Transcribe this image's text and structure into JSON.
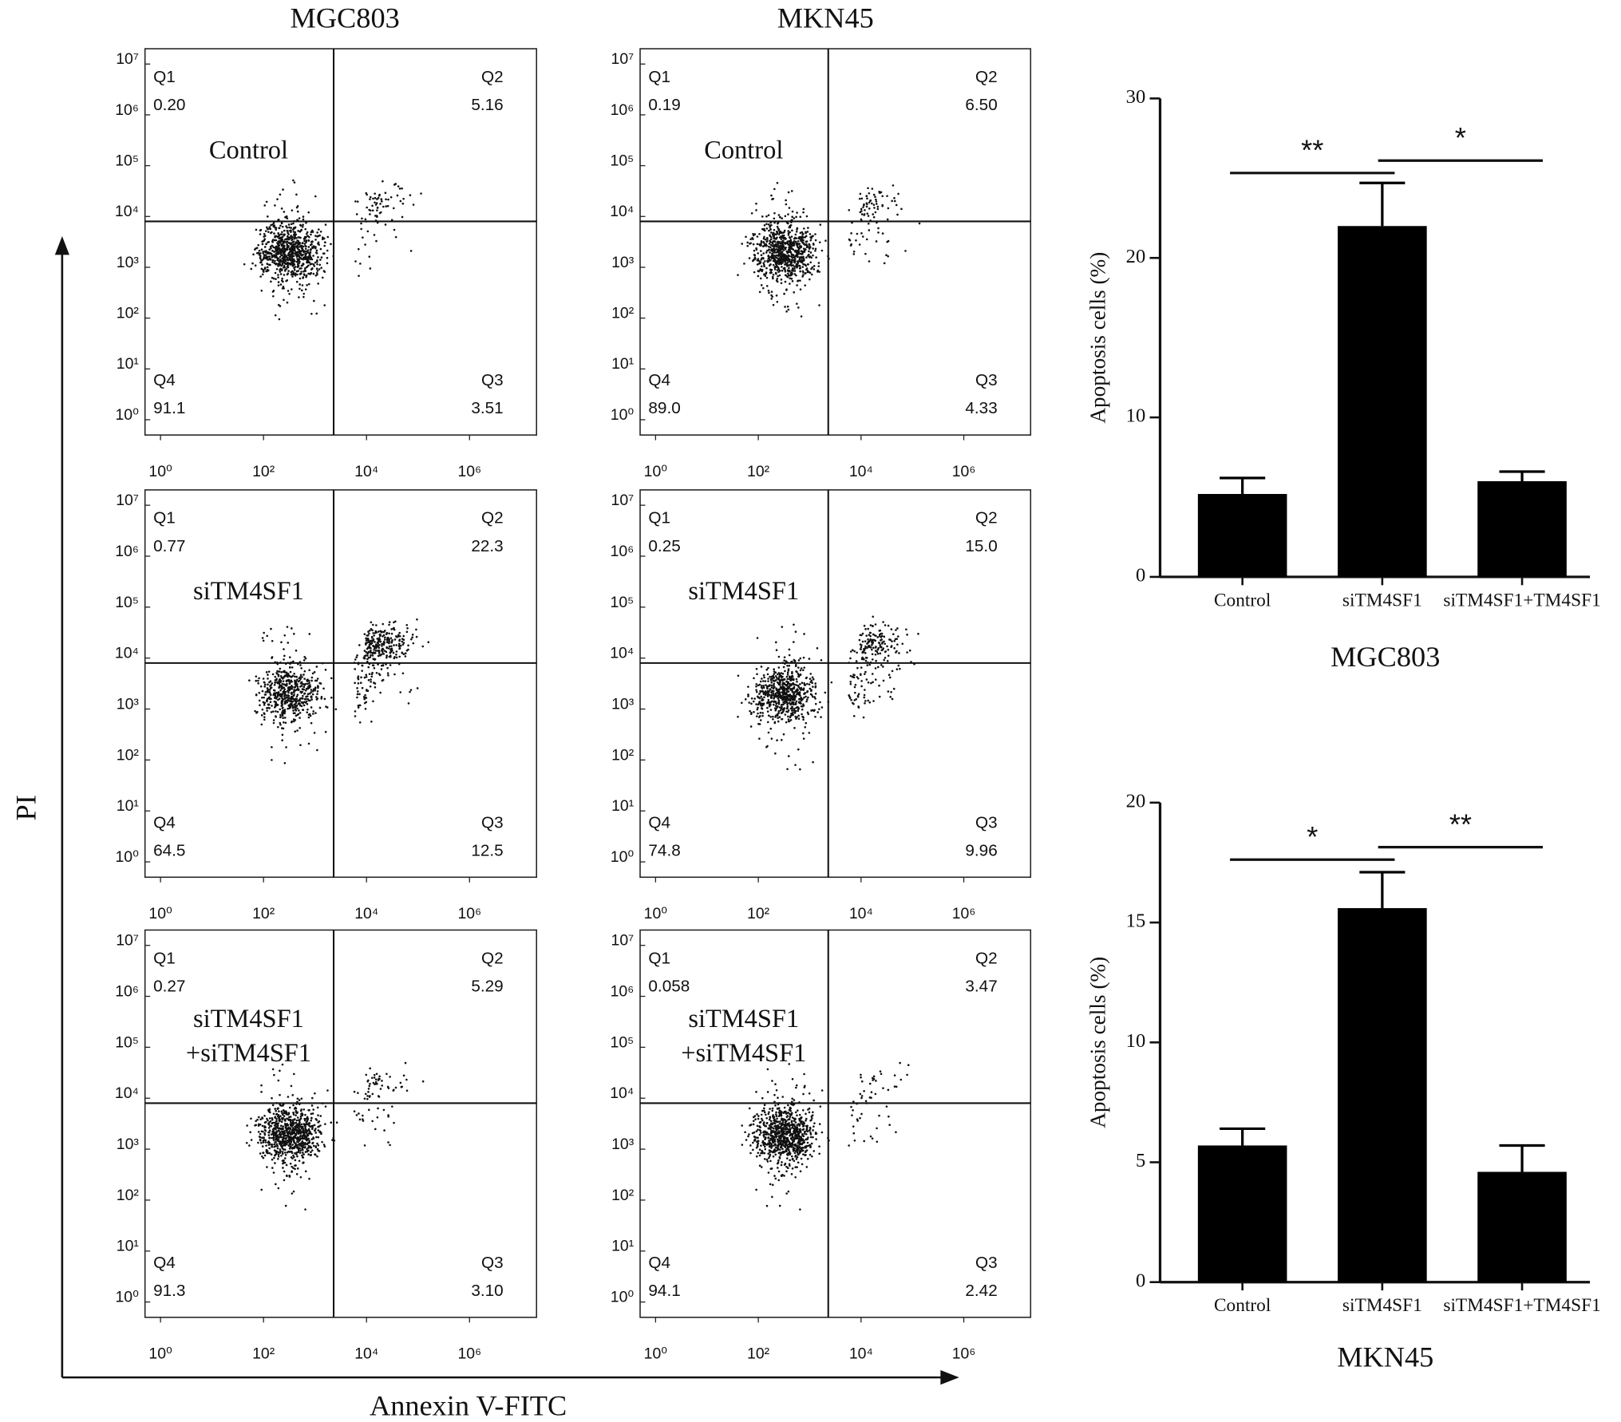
{
  "figure": {
    "column_titles": [
      "MGC803",
      "MKN45"
    ],
    "y_label": "PI",
    "x_label": "Annexin V-FITC"
  },
  "chart_data": [
    {
      "type": "flow",
      "label": [
        "Control"
      ],
      "xscale": "log",
      "yscale": "log",
      "xlim": [
        0.5,
        20000000
      ],
      "ylim": [
        0.5,
        20000000
      ],
      "xticks": [
        {
          "value": 1,
          "label": "10⁰"
        },
        {
          "value": 100,
          "label": "10²"
        },
        {
          "value": 10000,
          "label": "10⁴"
        },
        {
          "value": 1000000,
          "label": "10⁶"
        }
      ],
      "yticks": [
        {
          "value": 1,
          "label": "10⁰"
        },
        {
          "value": 10,
          "label": "10¹"
        },
        {
          "value": 100,
          "label": "10²"
        },
        {
          "value": 1000,
          "label": "10³"
        },
        {
          "value": 10000,
          "label": "10⁴"
        },
        {
          "value": 100000,
          "label": "10⁵"
        },
        {
          "value": 1000000,
          "label": "10⁶"
        },
        {
          "value": 10000000,
          "label": "10⁷"
        }
      ],
      "gate_x": 2300,
      "gate_y": 8000,
      "categories": [
        "Q1",
        "Q2",
        "Q3",
        "Q4"
      ],
      "values": [
        0.2,
        5.16,
        3.51,
        91.1
      ],
      "value_labels": [
        "0.20",
        "5.16",
        "3.51",
        "91.1"
      ]
    },
    {
      "type": "flow",
      "label": [
        "siTM4SF1"
      ],
      "xscale": "log",
      "yscale": "log",
      "xlim": [
        0.5,
        20000000
      ],
      "ylim": [
        0.5,
        20000000
      ],
      "xticks": [
        {
          "value": 1,
          "label": "10⁰"
        },
        {
          "value": 100,
          "label": "10²"
        },
        {
          "value": 10000,
          "label": "10⁴"
        },
        {
          "value": 1000000,
          "label": "10⁶"
        }
      ],
      "yticks": [
        {
          "value": 1,
          "label": "10⁰"
        },
        {
          "value": 10,
          "label": "10¹"
        },
        {
          "value": 100,
          "label": "10²"
        },
        {
          "value": 1000,
          "label": "10³"
        },
        {
          "value": 10000,
          "label": "10⁴"
        },
        {
          "value": 100000,
          "label": "10⁵"
        },
        {
          "value": 1000000,
          "label": "10⁶"
        },
        {
          "value": 10000000,
          "label": "10⁷"
        }
      ],
      "gate_x": 2300,
      "gate_y": 8000,
      "categories": [
        "Q1",
        "Q2",
        "Q3",
        "Q4"
      ],
      "values": [
        0.77,
        22.3,
        12.5,
        64.5
      ],
      "value_labels": [
        "0.77",
        "22.3",
        "12.5",
        "64.5"
      ]
    },
    {
      "type": "flow",
      "label": [
        "siTM4SF1",
        "+siTM4SF1"
      ],
      "xscale": "log",
      "yscale": "log",
      "xlim": [
        0.5,
        20000000
      ],
      "ylim": [
        0.5,
        20000000
      ],
      "xticks": [
        {
          "value": 1,
          "label": "10⁰"
        },
        {
          "value": 100,
          "label": "10²"
        },
        {
          "value": 10000,
          "label": "10⁴"
        },
        {
          "value": 1000000,
          "label": "10⁶"
        }
      ],
      "yticks": [
        {
          "value": 1,
          "label": "10⁰"
        },
        {
          "value": 10,
          "label": "10¹"
        },
        {
          "value": 100,
          "label": "10²"
        },
        {
          "value": 1000,
          "label": "10³"
        },
        {
          "value": 10000,
          "label": "10⁴"
        },
        {
          "value": 100000,
          "label": "10⁵"
        },
        {
          "value": 1000000,
          "label": "10⁶"
        },
        {
          "value": 10000000,
          "label": "10⁷"
        }
      ],
      "gate_x": 2300,
      "gate_y": 8000,
      "categories": [
        "Q1",
        "Q2",
        "Q3",
        "Q4"
      ],
      "values": [
        0.27,
        5.29,
        3.1,
        91.3
      ],
      "value_labels": [
        "0.27",
        "5.29",
        "3.10",
        "91.3"
      ]
    },
    {
      "type": "flow",
      "label": [
        "Control"
      ],
      "xscale": "log",
      "yscale": "log",
      "xlim": [
        0.5,
        20000000
      ],
      "ylim": [
        0.5,
        20000000
      ],
      "xticks": [
        {
          "value": 1,
          "label": "10⁰"
        },
        {
          "value": 100,
          "label": "10²"
        },
        {
          "value": 10000,
          "label": "10⁴"
        },
        {
          "value": 1000000,
          "label": "10⁶"
        }
      ],
      "yticks": [
        {
          "value": 1,
          "label": "10⁰"
        },
        {
          "value": 10,
          "label": "10¹"
        },
        {
          "value": 100,
          "label": "10²"
        },
        {
          "value": 1000,
          "label": "10³"
        },
        {
          "value": 10000,
          "label": "10⁴"
        },
        {
          "value": 100000,
          "label": "10⁵"
        },
        {
          "value": 1000000,
          "label": "10⁶"
        },
        {
          "value": 10000000,
          "label": "10⁷"
        }
      ],
      "gate_x": 2300,
      "gate_y": 8000,
      "categories": [
        "Q1",
        "Q2",
        "Q3",
        "Q4"
      ],
      "values": [
        0.19,
        6.5,
        4.33,
        89.0
      ],
      "value_labels": [
        "0.19",
        "6.50",
        "4.33",
        "89.0"
      ]
    },
    {
      "type": "flow",
      "label": [
        "siTM4SF1"
      ],
      "xscale": "log",
      "yscale": "log",
      "xlim": [
        0.5,
        20000000
      ],
      "ylim": [
        0.5,
        20000000
      ],
      "xticks": [
        {
          "value": 1,
          "label": "10⁰"
        },
        {
          "value": 100,
          "label": "10²"
        },
        {
          "value": 10000,
          "label": "10⁴"
        },
        {
          "value": 1000000,
          "label": "10⁶"
        }
      ],
      "yticks": [
        {
          "value": 1,
          "label": "10⁰"
        },
        {
          "value": 10,
          "label": "10¹"
        },
        {
          "value": 100,
          "label": "10²"
        },
        {
          "value": 1000,
          "label": "10³"
        },
        {
          "value": 10000,
          "label": "10⁴"
        },
        {
          "value": 100000,
          "label": "10⁵"
        },
        {
          "value": 1000000,
          "label": "10⁶"
        },
        {
          "value": 10000000,
          "label": "10⁷"
        }
      ],
      "gate_x": 2300,
      "gate_y": 8000,
      "categories": [
        "Q1",
        "Q2",
        "Q3",
        "Q4"
      ],
      "values": [
        0.25,
        15.0,
        9.96,
        74.8
      ],
      "value_labels": [
        "0.25",
        "15.0",
        "9.96",
        "74.8"
      ]
    },
    {
      "type": "flow",
      "label": [
        "siTM4SF1",
        "+siTM4SF1"
      ],
      "xscale": "log",
      "yscale": "log",
      "xlim": [
        0.5,
        20000000
      ],
      "ylim": [
        0.5,
        20000000
      ],
      "xticks": [
        {
          "value": 1,
          "label": "10⁰"
        },
        {
          "value": 100,
          "label": "10²"
        },
        {
          "value": 10000,
          "label": "10⁴"
        },
        {
          "value": 1000000,
          "label": "10⁶"
        }
      ],
      "yticks": [
        {
          "value": 1,
          "label": "10⁰"
        },
        {
          "value": 10,
          "label": "10¹"
        },
        {
          "value": 100,
          "label": "10²"
        },
        {
          "value": 1000,
          "label": "10³"
        },
        {
          "value": 10000,
          "label": "10⁴"
        },
        {
          "value": 100000,
          "label": "10⁵"
        },
        {
          "value": 1000000,
          "label": "10⁶"
        },
        {
          "value": 10000000,
          "label": "10⁷"
        }
      ],
      "gate_x": 2300,
      "gate_y": 8000,
      "categories": [
        "Q1",
        "Q2",
        "Q3",
        "Q4"
      ],
      "values": [
        0.058,
        3.47,
        2.42,
        94.1
      ],
      "value_labels": [
        "0.058",
        "3.47",
        "2.42",
        "94.1"
      ]
    },
    {
      "type": "bar",
      "title": "MGC803",
      "y_label": "Apoptosis cells (%)",
      "categories": [
        "Control",
        "siTM4SF1",
        "siTM4SF1+TM4SF1"
      ],
      "values": [
        5.2,
        22.0,
        6.0
      ],
      "errors": [
        1.0,
        2.7,
        0.6
      ],
      "color": "#000000",
      "ylim": [
        0,
        30
      ],
      "yticks": [
        0,
        10,
        20,
        30
      ],
      "annotations": [
        "**",
        "*"
      ]
    },
    {
      "type": "bar",
      "title": "MKN45",
      "y_label": "Apoptosis cells (%)",
      "categories": [
        "Control",
        "siTM4SF1",
        "siTM4SF1+TM4SF1"
      ],
      "values": [
        5.7,
        15.6,
        4.6
      ],
      "errors": [
        0.7,
        1.5,
        1.1
      ],
      "color": "#000000",
      "ylim": [
        0,
        20
      ],
      "yticks": [
        0,
        5,
        10,
        15,
        20
      ],
      "annotations": [
        "*",
        "**"
      ]
    }
  ]
}
